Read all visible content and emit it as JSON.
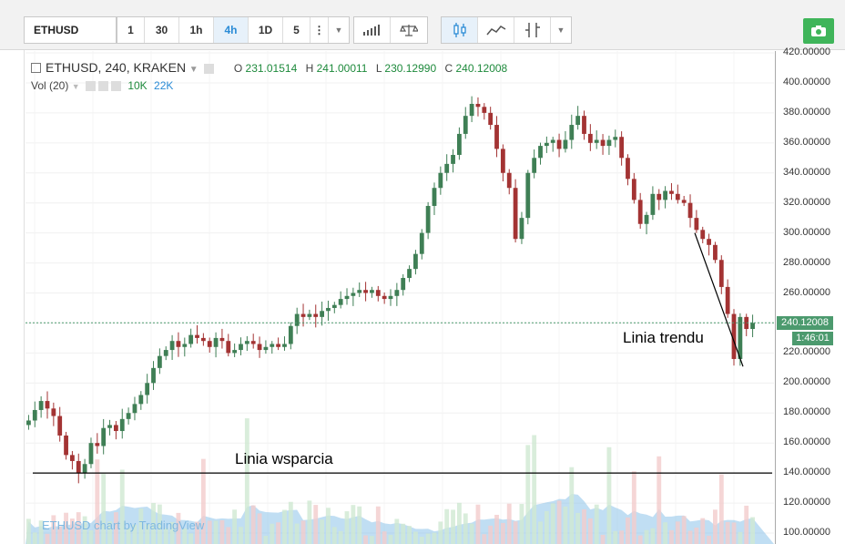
{
  "toolbar": {
    "symbol": "ETHUSD",
    "intervals": [
      "1",
      "30",
      "1h",
      "4h",
      "1D",
      "5"
    ],
    "active_interval": "4h",
    "icons": [
      "more-vert-icon",
      "chevron-down-icon",
      "bar-chart-icon",
      "scale-icon",
      "candles-icon",
      "line-chart-icon",
      "indicators-icon",
      "chevron-down-icon",
      "camera-icon"
    ]
  },
  "legend": {
    "title": "ETHUSD, 240, KRAKEN",
    "open_label": "O",
    "open": "231.01514",
    "high_label": "H",
    "high": "241.00011",
    "low_label": "L",
    "low": "230.12990",
    "close_label": "C",
    "close": "240.12008"
  },
  "volume_legend": {
    "label": "Vol (20)",
    "value1": "10K",
    "value2": "22K"
  },
  "price_axis": {
    "ticks": [
      "420.00000",
      "400.00000",
      "380.00000",
      "360.00000",
      "340.00000",
      "320.00000",
      "300.00000",
      "280.00000",
      "260.00000",
      "240.00000",
      "220.00000",
      "200.00000",
      "180.00000",
      "160.00000",
      "140.00000",
      "120.00000",
      "100.00000"
    ],
    "current_price": "240.12008",
    "countdown": "1:46:01"
  },
  "annotations": {
    "trend": "Linia trendu",
    "support": "Linia wsparcia"
  },
  "watermark": "ETHUSD chart by TradingView",
  "colors": {
    "up": "#3f7f55",
    "down": "#a33333",
    "vol_up": "#cfe8d2",
    "vol_down": "#f2cccc",
    "vol_ma": "#8cc3ea",
    "accent": "#2a8bd6"
  },
  "chart_data": {
    "type": "candlestick",
    "symbol": "ETHUSD",
    "interval": "240",
    "exchange": "KRAKEN",
    "ylim": [
      100,
      420
    ],
    "closes": [
      175,
      182,
      188,
      183,
      178,
      165,
      152,
      148,
      140,
      146,
      160,
      158,
      170,
      172,
      168,
      176,
      180,
      186,
      192,
      200,
      210,
      218,
      222,
      228,
      224,
      226,
      232,
      230,
      228,
      224,
      230,
      228,
      220,
      222,
      226,
      228,
      226,
      222,
      224,
      226,
      224,
      226,
      238,
      246,
      244,
      246,
      244,
      248,
      250,
      252,
      256,
      258,
      260,
      262,
      260,
      262,
      258,
      256,
      258,
      262,
      270,
      276,
      286,
      300,
      318,
      330,
      340,
      346,
      352,
      366,
      378,
      386,
      384,
      380,
      372,
      356,
      340,
      330,
      296,
      310,
      340,
      350,
      358,
      360,
      362,
      356,
      362,
      372,
      378,
      366,
      360,
      362,
      358,
      362,
      364,
      350,
      336,
      322,
      306,
      312,
      326,
      322,
      328,
      326,
      322,
      320,
      310,
      302,
      296,
      292,
      282,
      264,
      246,
      216,
      244,
      236,
      240
    ]
  }
}
